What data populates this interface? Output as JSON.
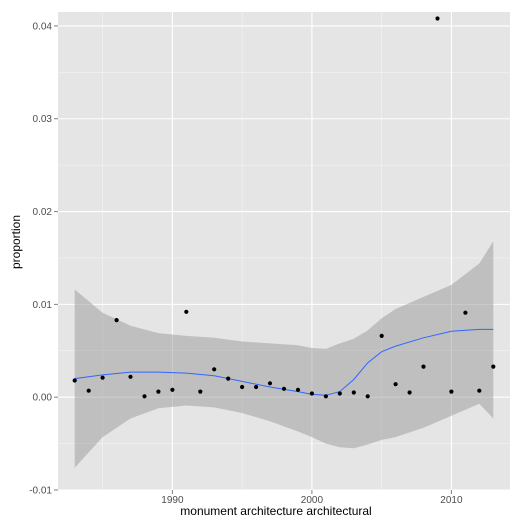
{
  "chart_data": {
    "type": "scatter",
    "xlabel": "monument architecture architectural",
    "ylabel": "proportion",
    "xlim": [
      1981.8,
      2014.2
    ],
    "ylim": [
      -0.01,
      0.0415
    ],
    "x_ticks": [
      1990,
      2000,
      2010
    ],
    "x_tick_labels": [
      "1990",
      "2000",
      "2010"
    ],
    "y_ticks": [
      -0.01,
      0.0,
      0.01,
      0.02,
      0.03,
      0.04
    ],
    "y_tick_labels": [
      "-0.01",
      "0.00",
      "0.01",
      "0.02",
      "0.03",
      "0.04"
    ],
    "grid": true,
    "panel_color": "#e5e5e5",
    "grid_color": "#ffffff",
    "point_color": "#000000",
    "smooth_color": "#3366ff",
    "ribbon_color": "#999999",
    "points": {
      "x": [
        1983,
        1984,
        1985,
        1986,
        1987,
        1988,
        1989,
        1990,
        1991,
        1992,
        1993,
        1994,
        1995,
        1996,
        1997,
        1998,
        1999,
        2000,
        2001,
        2002,
        2003,
        2004,
        2005,
        2006,
        2007,
        2008,
        2009,
        2010,
        2011,
        2012,
        2013
      ],
      "y": [
        0.0018,
        0.0007,
        0.0021,
        0.0083,
        0.0022,
        0.0001,
        0.0006,
        0.0008,
        0.0092,
        0.0006,
        0.003,
        0.002,
        0.0011,
        0.0011,
        0.0015,
        0.0009,
        0.0008,
        0.0004,
        0.0001,
        0.0004,
        0.0005,
        0.0001,
        0.0066,
        0.0014,
        0.0005,
        0.0033,
        0.0408,
        0.0006,
        0.0091,
        0.0007,
        0.0033
      ]
    },
    "smooth": {
      "x": [
        1983,
        1985,
        1987,
        1989,
        1991,
        1993,
        1995,
        1997,
        1999,
        2000,
        2001,
        2002,
        2003,
        2004,
        2005,
        2006,
        2008,
        2010,
        2012,
        2013
      ],
      "y": [
        0.002,
        0.0024,
        0.0027,
        0.0027,
        0.0026,
        0.0023,
        0.0017,
        0.0011,
        0.0006,
        0.0003,
        0.0002,
        0.0006,
        0.0019,
        0.0037,
        0.0049,
        0.0055,
        0.0064,
        0.0071,
        0.0073,
        0.0073
      ],
      "lower": [
        -0.0076,
        -0.0043,
        -0.0023,
        -0.0012,
        -0.0009,
        -0.0011,
        -0.0017,
        -0.0026,
        -0.0037,
        -0.0043,
        -0.005,
        -0.0054,
        -0.0055,
        -0.0051,
        -0.0046,
        -0.0043,
        -0.0033,
        -0.002,
        -0.0007,
        -0.0023
      ],
      "upper": [
        0.0116,
        0.0091,
        0.0077,
        0.0069,
        0.0066,
        0.0064,
        0.006,
        0.0058,
        0.0056,
        0.0053,
        0.0052,
        0.0058,
        0.0063,
        0.0072,
        0.0085,
        0.0095,
        0.0108,
        0.0121,
        0.0144,
        0.0168
      ]
    }
  }
}
